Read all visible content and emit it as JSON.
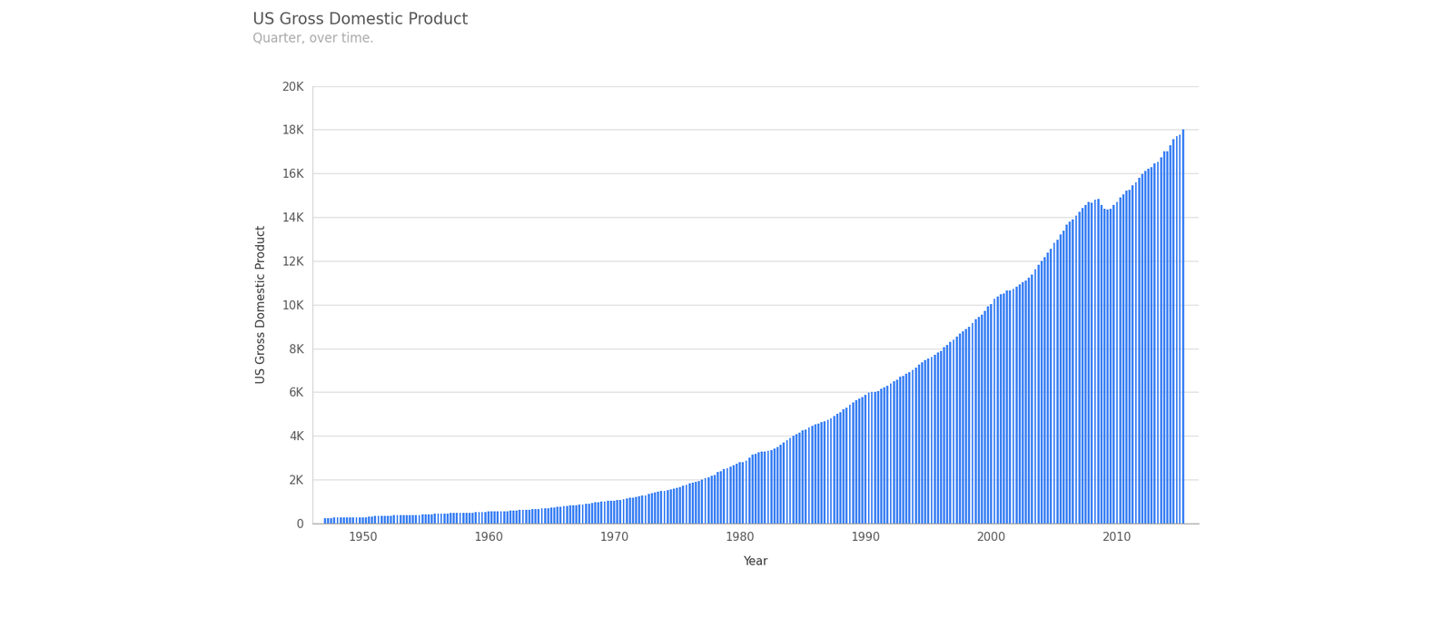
{
  "chart_data": {
    "type": "bar",
    "title": "US Gross Domestic Product",
    "subtitle": "Quarter, over time.",
    "x_label": "Year",
    "y_label": "US Gross Domestic Product",
    "color": "#4285f4",
    "grid": true,
    "x": [
      1947,
      1947.25,
      1947.5,
      1947.75,
      1948,
      1948.25,
      1948.5,
      1948.75,
      1949,
      1949.25,
      1949.5,
      1949.75,
      1950,
      1950.25,
      1950.5,
      1950.75,
      1951,
      1951.25,
      1951.5,
      1951.75,
      1952,
      1952.25,
      1952.5,
      1952.75,
      1953,
      1953.25,
      1953.5,
      1953.75,
      1954,
      1954.25,
      1954.5,
      1954.75,
      1955,
      1955.25,
      1955.5,
      1955.75,
      1956,
      1956.25,
      1956.5,
      1956.75,
      1957,
      1957.25,
      1957.5,
      1957.75,
      1958,
      1958.25,
      1958.5,
      1958.75,
      1959,
      1959.25,
      1959.5,
      1959.75,
      1960,
      1960.25,
      1960.5,
      1960.75,
      1961,
      1961.25,
      1961.5,
      1961.75,
      1962,
      1962.25,
      1962.5,
      1962.75,
      1963,
      1963.25,
      1963.5,
      1963.75,
      1964,
      1964.25,
      1964.5,
      1964.75,
      1965,
      1965.25,
      1965.5,
      1965.75,
      1966,
      1966.25,
      1966.5,
      1966.75,
      1967,
      1967.25,
      1967.5,
      1967.75,
      1968,
      1968.25,
      1968.5,
      1968.75,
      1969,
      1969.25,
      1969.5,
      1969.75,
      1970,
      1970.25,
      1970.5,
      1970.75,
      1971,
      1971.25,
      1971.5,
      1971.75,
      1972,
      1972.25,
      1972.5,
      1972.75,
      1973,
      1973.25,
      1973.5,
      1973.75,
      1974,
      1974.25,
      1974.5,
      1974.75,
      1975,
      1975.25,
      1975.5,
      1975.75,
      1976,
      1976.25,
      1976.5,
      1976.75,
      1977,
      1977.25,
      1977.5,
      1977.75,
      1978,
      1978.25,
      1978.5,
      1978.75,
      1979,
      1979.25,
      1979.5,
      1979.75,
      1980,
      1980.25,
      1980.5,
      1980.75,
      1981,
      1981.25,
      1981.5,
      1981.75,
      1982,
      1982.25,
      1982.5,
      1982.75,
      1983,
      1983.25,
      1983.5,
      1983.75,
      1984,
      1984.25,
      1984.5,
      1984.75,
      1985,
      1985.25,
      1985.5,
      1985.75,
      1986,
      1986.25,
      1986.5,
      1986.75,
      1987,
      1987.25,
      1987.5,
      1987.75,
      1988,
      1988.25,
      1988.5,
      1988.75,
      1989,
      1989.25,
      1989.5,
      1989.75,
      1990,
      1990.25,
      1990.5,
      1990.75,
      1991,
      1991.25,
      1991.5,
      1991.75,
      1992,
      1992.25,
      1992.5,
      1992.75,
      1993,
      1993.25,
      1993.5,
      1993.75,
      1994,
      1994.25,
      1994.5,
      1994.75,
      1995,
      1995.25,
      1995.5,
      1995.75,
      1996,
      1996.25,
      1996.5,
      1996.75,
      1997,
      1997.25,
      1997.5,
      1997.75,
      1998,
      1998.25,
      1998.5,
      1998.75,
      1999,
      1999.25,
      1999.5,
      1999.75,
      2000,
      2000.25,
      2000.5,
      2000.75,
      2001,
      2001.25,
      2001.5,
      2001.75,
      2002,
      2002.25,
      2002.5,
      2002.75,
      2003,
      2003.25,
      2003.5,
      2003.75,
      2004,
      2004.25,
      2004.5,
      2004.75,
      2005,
      2005.25,
      2005.5,
      2005.75,
      2006,
      2006.25,
      2006.5,
      2006.75,
      2007,
      2007.25,
      2007.5,
      2007.75,
      2008,
      2008.25,
      2008.5,
      2008.75,
      2009,
      2009.25,
      2009.5,
      2009.75,
      2010,
      2010.25,
      2010.5,
      2010.75,
      2011,
      2011.25,
      2011.5,
      2011.75,
      2012,
      2012.25,
      2012.5,
      2012.75,
      2013,
      2013.25,
      2013.5,
      2013.75,
      2014,
      2014.25,
      2014.5,
      2014.75,
      2015,
      2015.25
    ],
    "values": [
      243.2,
      246.0,
      249.6,
      259.7,
      265.7,
      272.6,
      279.2,
      280.4,
      275.0,
      271.4,
      272.9,
      270.6,
      280.8,
      290.4,
      308.2,
      319.9,
      336.0,
      344.1,
      351.3,
      356.2,
      359.8,
      361.0,
      367.7,
      380.8,
      389.4,
      391.6,
      391.0,
      385.5,
      386.1,
      386.4,
      391.1,
      400.1,
      413.8,
      422.2,
      430.9,
      437.8,
      440.5,
      446.8,
      452.0,
      461.3,
      470.6,
      472.8,
      480.3,
      475.7,
      468.4,
      472.8,
      486.7,
      500.4,
      511.1,
      524.2,
      525.2,
      529.4,
      543.3,
      542.7,
      546.0,
      541.1,
      545.9,
      557.4,
      568.2,
      581.6,
      595.2,
      602.6,
      609.6,
      613.1,
      622.7,
      631.8,
      645.0,
      654.8,
      671.1,
      680.8,
      692.8,
      698.4,
      719.2,
      732.4,
      750.2,
      773.1,
      797.3,
      807.2,
      820.8,
      834.9,
      846.0,
      851.1,
      866.6,
      883.2,
      911.1,
      936.3,
      952.3,
      970.1,
      995.4,
      1011.4,
      1032.0,
      1040.7,
      1053.5,
      1070.1,
      1088.5,
      1091.5,
      1137.8,
      1159.4,
      1180.3,
      1193.6,
      1233.8,
      1270.1,
      1293.8,
      1332.0,
      1380.7,
      1417.6,
      1436.8,
      1479.1,
      1494.7,
      1534.2,
      1563.4,
      1603.0,
      1619.6,
      1656.4,
      1713.8,
      1765.9,
      1824.5,
      1856.9,
      1890.5,
      1938.4,
      1992.5,
      2060.2,
      2122.4,
      2168.7,
      2208.7,
      2336.6,
      2398.9,
      2482.2,
      2531.6,
      2595.9,
      2670.4,
      2730.7,
      2796.5,
      2799.9,
      2860.0,
      2993.5,
      3131.8,
      3167.3,
      3261.2,
      3283.5,
      3273.8,
      3331.3,
      3367.1,
      3407.8,
      3480.3,
      3583.8,
      3692.3,
      3796.1,
      3912.8,
      4015.0,
      4087.4,
      4147.6,
      4237.0,
      4302.3,
      4394.6,
      4453.1,
      4516.3,
      4555.2,
      4619.6,
      4669.4,
      4736.2,
      4821.5,
      4900.5,
      5022.7,
      5090.6,
      5207.7,
      5299.5,
      5412.7,
      5527.4,
      5628.4,
      5711.6,
      5763.4,
      5890.8,
      5974.7,
      6029.5,
      6023.3,
      6054.9,
      6143.6,
      6218.4,
      6279.3,
      6380.8,
      6492.3,
      6586.5,
      6697.6,
      6748.2,
      6829.6,
      6904.2,
      7032.8,
      7136.3,
      7269.8,
      7352.3,
      7476.7,
      7545.3,
      7604.9,
      7706.5,
      7799.5,
      7893.1,
      8061.5,
      8159.0,
      8287.1,
      8402.1,
      8551.9,
      8691.8,
      8788.3,
      8889.7,
      8994.7,
      9146.5,
      9325.7,
      9447.1,
      9557.0,
      9712.3,
      9926.1,
      10031.0,
      10278.3,
      10357.4,
      10472.3,
      10508.1,
      10638.4,
      10639.5,
      10701.3,
      10834.4,
      10934.8,
      11037.1,
      11103.8,
      11230.1,
      11370.7,
      11625.1,
      11816.8,
      11988.4,
      12181.4,
      12367.7,
      12562.2,
      12813.7,
      12974.1,
      13205.4,
      13381.6,
      13648.9,
      13799.8,
      13908.5,
      14066.4,
      14233.2,
      14422.3,
      14569.7,
      14685.3,
      14668.4,
      14813.0,
      14843.0,
      14549.9,
      14383.9,
      14340.4,
      14384.1,
      14566.5,
      14681.1,
      14888.6,
      15057.7,
      15230.2,
      15238.4,
      15460.9,
      15587.1,
      15785.3,
      15973.9,
      16121.9,
      16227.9,
      16297.3,
      16475.4,
      16541.4,
      16749.3,
      16999.9,
      17025.2,
      17285.6,
      17569.4,
      17692.2,
      17783.6,
      17998.3
    ],
    "xlim": [
      1946,
      2016.5
    ],
    "xticks": [
      1950,
      1960,
      1970,
      1980,
      1990,
      2000,
      2010
    ],
    "ylim": [
      0,
      20000
    ],
    "yticks": [
      0,
      {
        "value": 2000,
        "label": "2K"
      },
      {
        "value": 4000,
        "label": "4K"
      },
      {
        "value": 6000,
        "label": "6K"
      },
      {
        "value": 8000,
        "label": "8K"
      },
      {
        "value": 10000,
        "label": "10K"
      },
      {
        "value": 12000,
        "label": "12K"
      },
      {
        "value": 14000,
        "label": "14K"
      },
      {
        "value": 16000,
        "label": "16K"
      },
      {
        "value": 18000,
        "label": "18K"
      },
      {
        "value": 20000,
        "label": "20K"
      }
    ]
  }
}
